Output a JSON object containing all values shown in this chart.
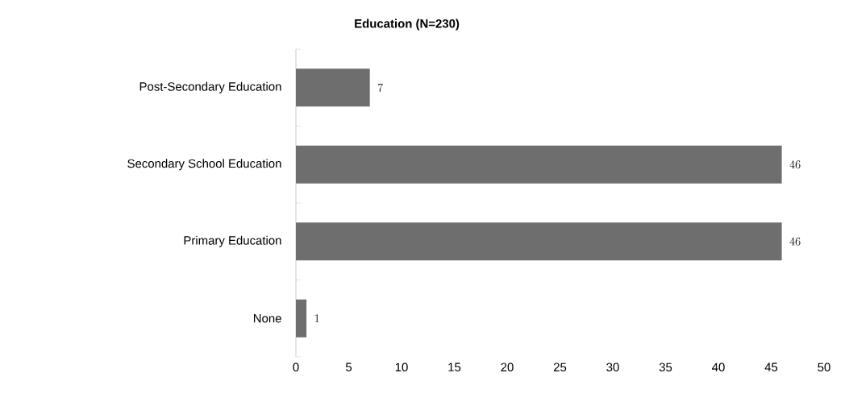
{
  "chart_data": {
    "type": "bar",
    "orientation": "horizontal",
    "title": "Education (N=230)",
    "categories": [
      "Post-Secondary Education",
      "Secondary School Education",
      "Primary Education",
      "None"
    ],
    "values": [
      7,
      46,
      46,
      1
    ],
    "color": "#6e6e6e",
    "xlim": [
      0,
      50
    ],
    "xticks": [
      0,
      5,
      10,
      15,
      20,
      25,
      30,
      35,
      40,
      45,
      50
    ],
    "data_labels": true
  }
}
